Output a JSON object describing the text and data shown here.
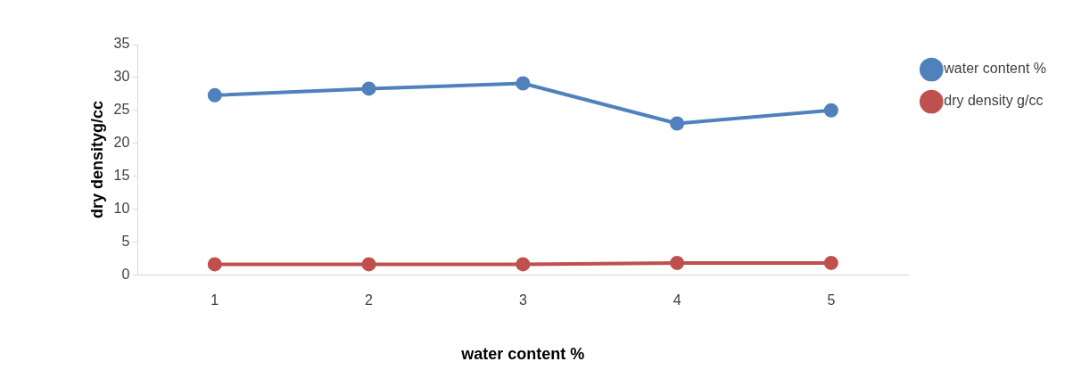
{
  "chart_data": {
    "type": "line",
    "xlabel": "water content %",
    "ylabel": "dry densityg/cc",
    "categories": [
      "1",
      "2",
      "3",
      "4",
      "5"
    ],
    "series": [
      {
        "name": "water content %",
        "color": "#4f81bd",
        "values": [
          27.3,
          28.3,
          29.1,
          23,
          25
        ]
      },
      {
        "name": "dry density g/cc",
        "color": "#c0504d",
        "values": [
          1.6,
          1.6,
          1.6,
          1.8,
          1.8
        ]
      }
    ],
    "ylim": [
      0,
      35
    ],
    "yticks": [
      0,
      5,
      10,
      15,
      20,
      25,
      30,
      35
    ],
    "grid": false,
    "legend": "top right",
    "marker": "circle",
    "line_style": "solid"
  }
}
